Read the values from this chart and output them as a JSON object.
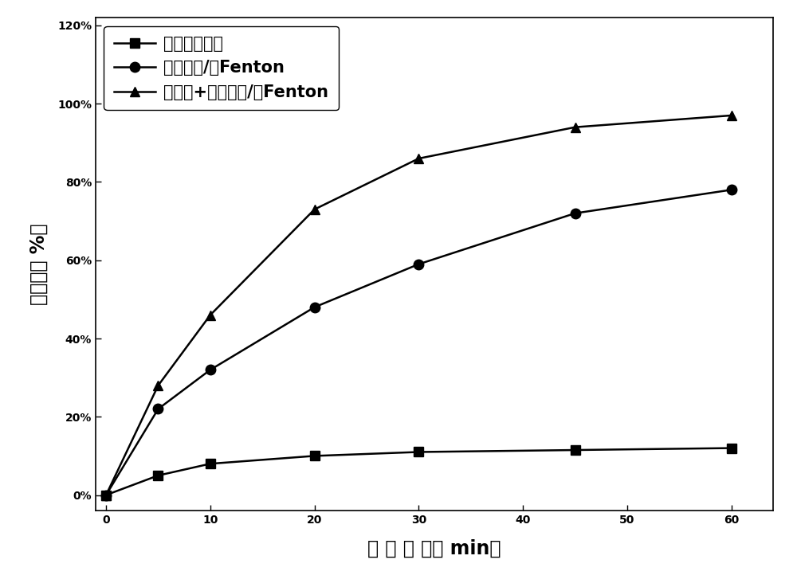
{
  "x": [
    0,
    5,
    10,
    20,
    30,
    45,
    60
  ],
  "series": [
    {
      "label": "可见光光杳化",
      "values": [
        0,
        0.05,
        0.08,
        0.1,
        0.11,
        0.115,
        0.12
      ],
      "marker": "s",
      "color": "#000000"
    },
    {
      "label": "三维电极/电Fenton",
      "values": [
        0,
        0.22,
        0.32,
        0.48,
        0.59,
        0.72,
        0.78
      ],
      "marker": "o",
      "color": "#000000"
    },
    {
      "label": "可见光+三维电极/电Fenton",
      "values": [
        0,
        0.28,
        0.46,
        0.73,
        0.86,
        0.94,
        0.97
      ],
      "marker": "^",
      "color": "#000000"
    }
  ],
  "xlabel": "处 理 时 间（ min）",
  "ylabel": "去除率（ %）",
  "xlim": [
    -1,
    64
  ],
  "ylim": [
    -0.04,
    1.22
  ],
  "yticks": [
    0.0,
    0.2,
    0.4,
    0.6,
    0.8,
    1.0,
    1.2
  ],
  "ytick_labels": [
    "0%",
    "20%",
    "40%",
    "60%",
    "80%",
    "100%",
    "120%"
  ],
  "xticks": [
    0,
    10,
    20,
    30,
    40,
    50,
    60
  ],
  "background_color": "#ffffff",
  "linewidth": 1.8,
  "markersize": 9,
  "legend_fontsize": 15,
  "axis_fontsize": 17,
  "tick_fontsize": 14
}
